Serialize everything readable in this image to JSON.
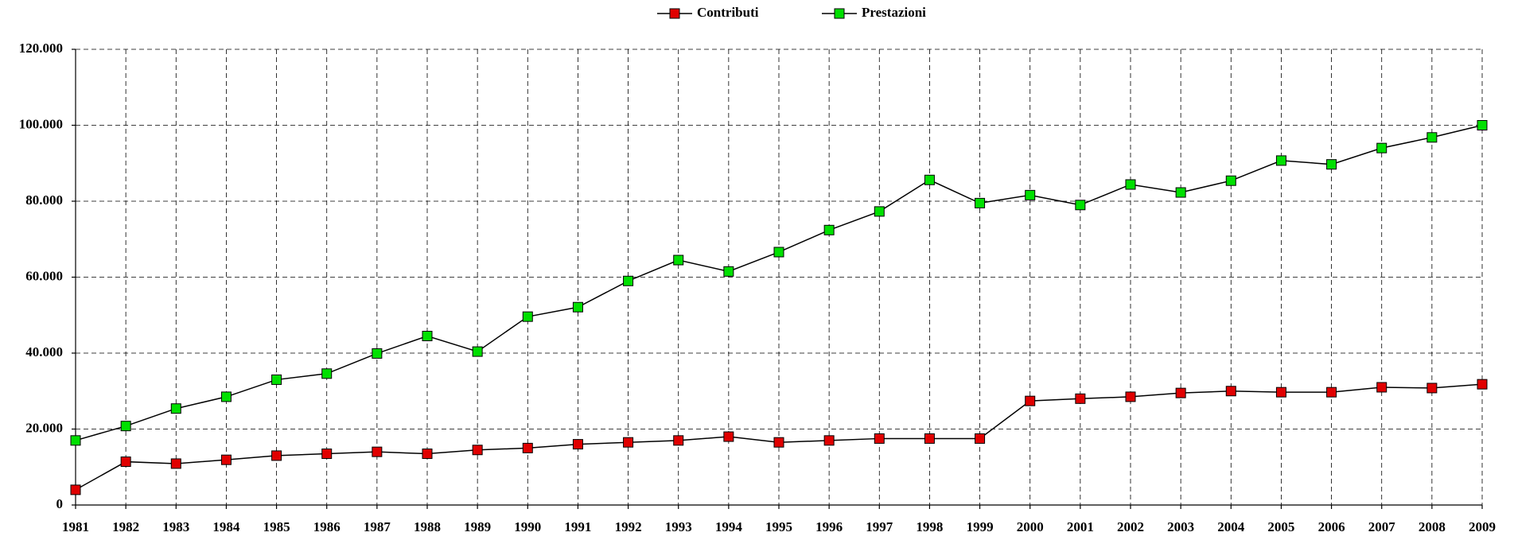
{
  "chart_data": {
    "type": "line",
    "categories": [
      "1981",
      "1982",
      "1983",
      "1984",
      "1985",
      "1986",
      "1987",
      "1988",
      "1989",
      "1990",
      "1991",
      "1992",
      "1993",
      "1994",
      "1995",
      "1996",
      "1997",
      "1998",
      "1999",
      "2000",
      "2001",
      "2002",
      "2003",
      "2004",
      "2005",
      "2006",
      "2007",
      "2008",
      "2009"
    ],
    "series": [
      {
        "name": "Contributi",
        "color": "#e00000",
        "values": [
          4000,
          11400,
          10900,
          11900,
          13000,
          13500,
          14000,
          13500,
          14500,
          15000,
          16000,
          16500,
          17000,
          18000,
          16500,
          17000,
          17500,
          17500,
          17500,
          27400,
          28000,
          28500,
          29500,
          30000,
          29700,
          29700,
          31000,
          30800,
          31800
        ]
      },
      {
        "name": "Prestazioni",
        "color": "#00e000",
        "values": [
          17000,
          20800,
          25400,
          28500,
          33000,
          34600,
          39900,
          44500,
          40400,
          49600,
          52100,
          59000,
          64500,
          61500,
          66600,
          72400,
          77300,
          85600,
          79500,
          81600,
          79000,
          84400,
          82300,
          85400,
          90700,
          89700,
          94000,
          96800,
          100000
        ]
      }
    ],
    "ylim": [
      0,
      120000
    ],
    "yticks": [
      0,
      {
        "value": 20000,
        "label": "20.000"
      },
      {
        "value": 40000,
        "label": "40.000"
      },
      {
        "value": 60000,
        "label": "60.000"
      },
      {
        "value": 80000,
        "label": "80.000"
      },
      {
        "value": 100000,
        "label": "100.000"
      },
      {
        "value": 120000,
        "label": "120.000"
      }
    ],
    "grid": true,
    "legend": "top"
  }
}
